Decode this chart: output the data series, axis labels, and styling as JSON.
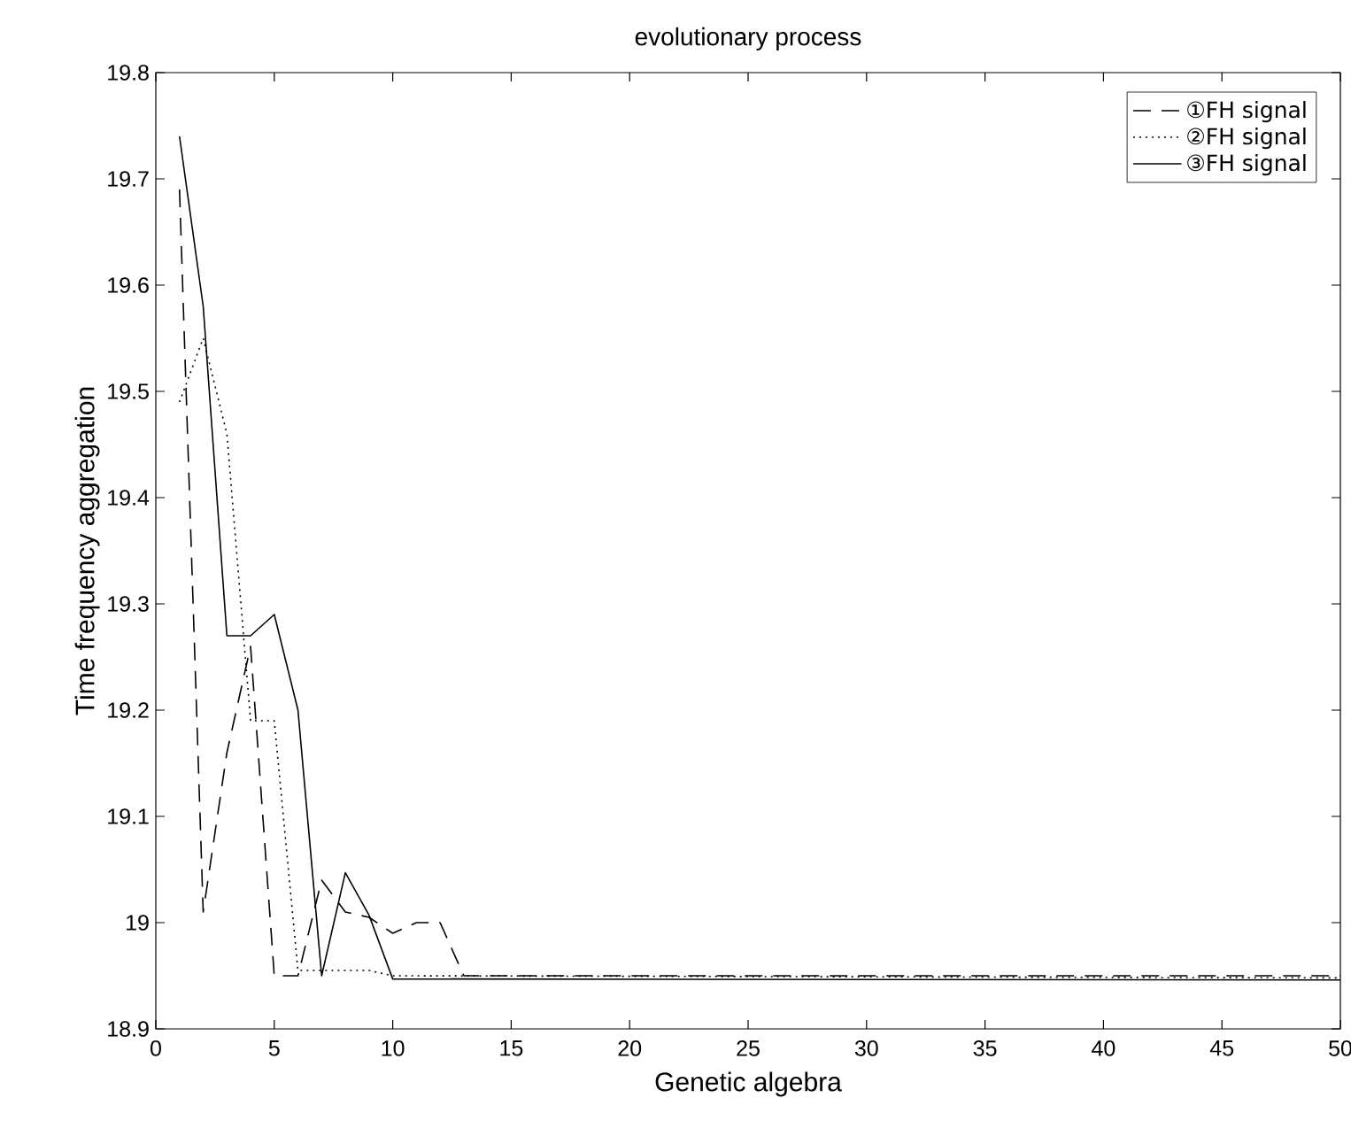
{
  "chart_data": {
    "type": "line",
    "title": "evolutionary process",
    "xlabel": "Genetic algebra",
    "ylabel": "Time frequency aggregation",
    "xlim": [
      0,
      50
    ],
    "xticks": [
      0,
      5,
      10,
      15,
      20,
      25,
      30,
      35,
      40,
      45,
      50
    ],
    "ylim": [
      18.9,
      19.8
    ],
    "yticks": [
      18.9,
      19,
      19.1,
      19.2,
      19.3,
      19.4,
      19.5,
      19.6,
      19.7,
      19.8
    ],
    "grid": false,
    "legend": "top right",
    "marker": "none",
    "series": [
      {
        "name": "①FH signal",
        "color": "#000000",
        "line_style": "dashed",
        "x": [
          1,
          2,
          3,
          4,
          5,
          6,
          7,
          8,
          9,
          10,
          11,
          12,
          13,
          50
        ],
        "values": [
          19.69,
          19.01,
          19.16,
          19.26,
          18.95,
          18.95,
          19.04,
          19.01,
          19.005,
          18.99,
          19.0,
          19.0,
          18.95,
          18.95
        ]
      },
      {
        "name": "②FH signal",
        "color": "#000000",
        "line_style": "dotted",
        "x": [
          1,
          2,
          3,
          4,
          5,
          6,
          7,
          8,
          9,
          10,
          50
        ],
        "values": [
          19.49,
          19.55,
          19.46,
          19.19,
          19.19,
          18.955,
          18.955,
          18.955,
          18.955,
          18.95,
          18.948
        ]
      },
      {
        "name": "③FH signal",
        "color": "#000000",
        "line_style": "solid",
        "x": [
          1,
          2,
          3,
          4,
          5,
          6,
          7,
          8,
          9,
          10,
          50
        ],
        "values": [
          19.74,
          19.58,
          19.27,
          19.27,
          19.29,
          19.2,
          18.95,
          19.047,
          19.007,
          18.947,
          18.946
        ]
      }
    ]
  }
}
